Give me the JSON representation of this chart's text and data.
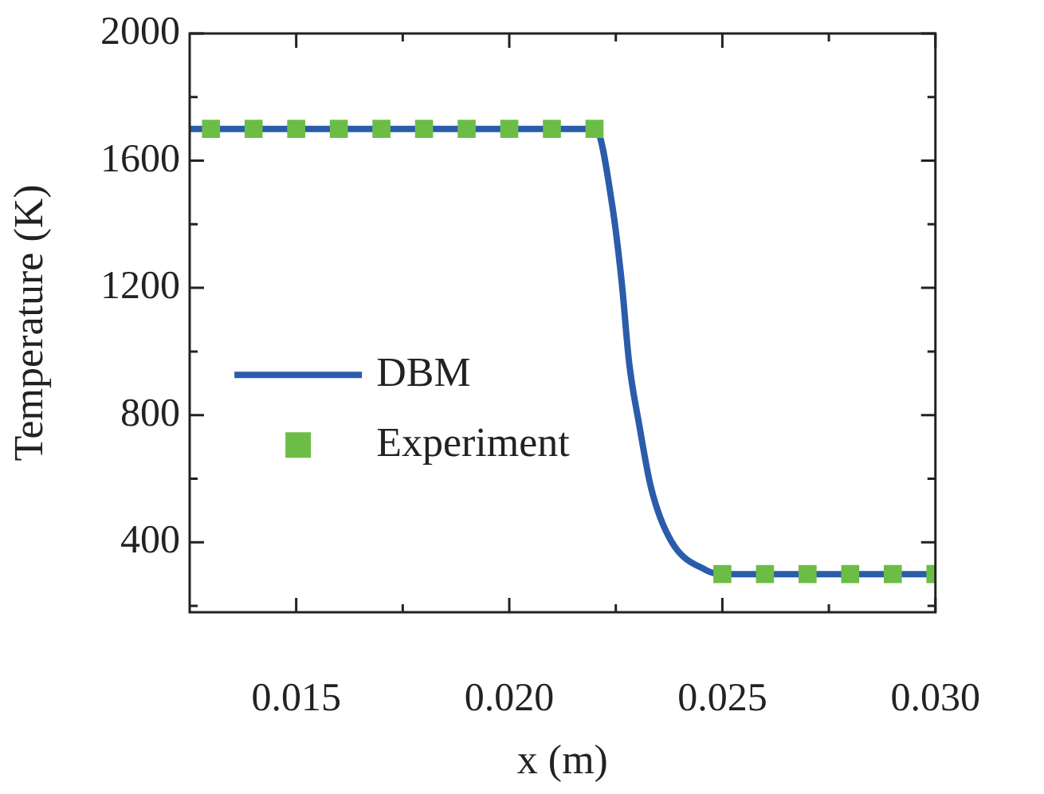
{
  "chart_data": {
    "type": "line",
    "xlabel": "x (m)",
    "ylabel": "Temperature (K)",
    "xlim": [
      0.0125,
      0.03
    ],
    "ylim": [
      180,
      2000
    ],
    "xticks": [
      0.015,
      {
        "value": 0.0175,
        "label": null
      },
      "0.020",
      {
        "value": 0.0225,
        "label": null
      },
      0.025,
      {
        "value": 0.0275,
        "label": null
      },
      "0.030"
    ],
    "yticks": [
      {
        "value": 200,
        "label": null
      },
      400,
      {
        "value": 600,
        "label": null
      },
      800,
      {
        "value": 1000,
        "label": null
      },
      1200,
      {
        "value": 1400,
        "label": null
      },
      1600,
      {
        "value": 1800,
        "label": null
      },
      2000
    ],
    "grid": false,
    "legend": "left",
    "series": [
      {
        "name": "DBM",
        "type": "line",
        "color": "#2a5caa",
        "x": [
          0.0125,
          0.022,
          0.02205,
          0.02241,
          0.02264,
          0.02281,
          0.02305,
          0.02333,
          0.0238,
          0.02461,
          0.025,
          0.03
        ],
        "values": [
          1700,
          1700,
          1698,
          1465,
          1216,
          968,
          769,
          570,
          404,
          313,
          300,
          300
        ]
      },
      {
        "name": "Experiment",
        "type": "scatter",
        "marker": "square",
        "color": "#6cbd45",
        "x": [
          0.013,
          0.014,
          0.015,
          0.016,
          0.017,
          0.018,
          0.019,
          0.02,
          0.021,
          0.022,
          0.025,
          0.026,
          0.027,
          0.028,
          0.029,
          0.03
        ],
        "values": [
          1700,
          1700,
          1700,
          1700,
          1700,
          1700,
          1700,
          1700,
          1700,
          1700,
          300,
          300,
          300,
          300,
          300,
          300
        ]
      }
    ]
  }
}
